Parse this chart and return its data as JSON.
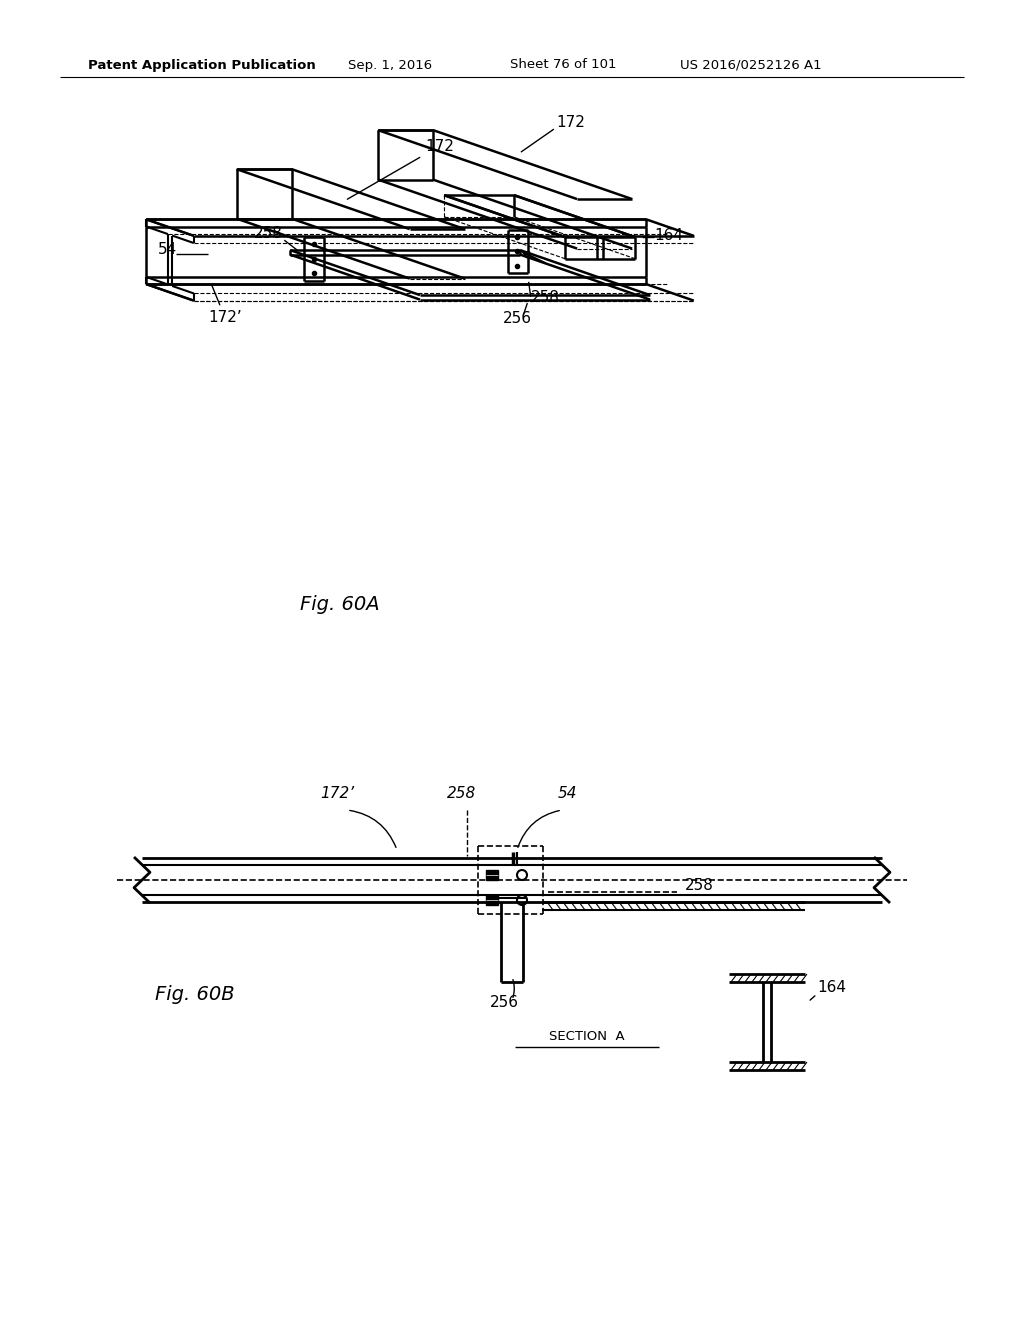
{
  "bg_color": "#ffffff",
  "header_text": "Patent Application Publication",
  "header_date": "Sep. 1, 2016",
  "header_sheet": "Sheet 76 of 101",
  "header_patent": "US 2016/0252126 A1",
  "fig60a_label": "Fig. 60A",
  "fig60b_label": "Fig. 60B",
  "section_label": "SECTION  A",
  "line_color": "#000000"
}
